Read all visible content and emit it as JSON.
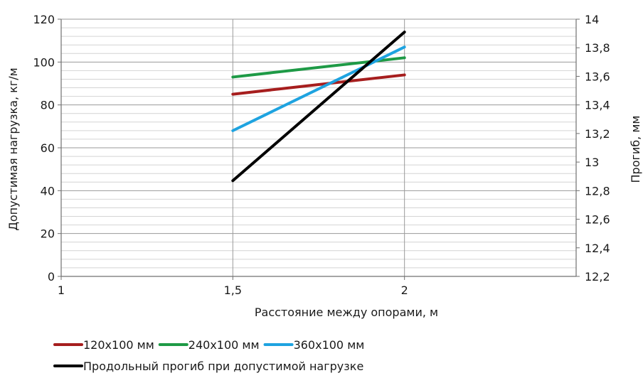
{
  "chart_data": {
    "type": "line",
    "xlabel": "Расстояние между опорами, м",
    "ylabel": "Допустимая нагрузка, кг/м",
    "y2label": "Прогиб, мм",
    "x_ticks": [
      "1",
      "1,5",
      "2"
    ],
    "y_ticks": [
      "0",
      "20",
      "40",
      "60",
      "80",
      "100",
      "120"
    ],
    "y2_ticks": [
      "12,2",
      "12,4",
      "12,6",
      "12,8",
      "13",
      "13,2",
      "13,4",
      "13,6",
      "13,8",
      "14"
    ],
    "xlim": [
      1,
      2.5
    ],
    "ylim": [
      0,
      120
    ],
    "y2lim": [
      12.2,
      14
    ],
    "grid": true,
    "legend_position": "bottom-left",
    "series": [
      {
        "name": "120x100 мм",
        "axis": "left",
        "color": "#a61e1e",
        "x": [
          1.5,
          2
        ],
        "y": [
          85,
          94
        ]
      },
      {
        "name": "240x100 мм",
        "axis": "left",
        "color": "#1e9a46",
        "x": [
          1.5,
          2
        ],
        "y": [
          93,
          102
        ]
      },
      {
        "name": "360x100 мм",
        "axis": "left",
        "color": "#1ea3e0",
        "x": [
          1.5,
          2
        ],
        "y": [
          68,
          107
        ]
      },
      {
        "name": "Продольный прогиб при допустимой нагрузке",
        "axis": "right",
        "color": "#000000",
        "x": [
          1.5,
          2
        ],
        "y": [
          12.87,
          13.91
        ]
      }
    ]
  }
}
